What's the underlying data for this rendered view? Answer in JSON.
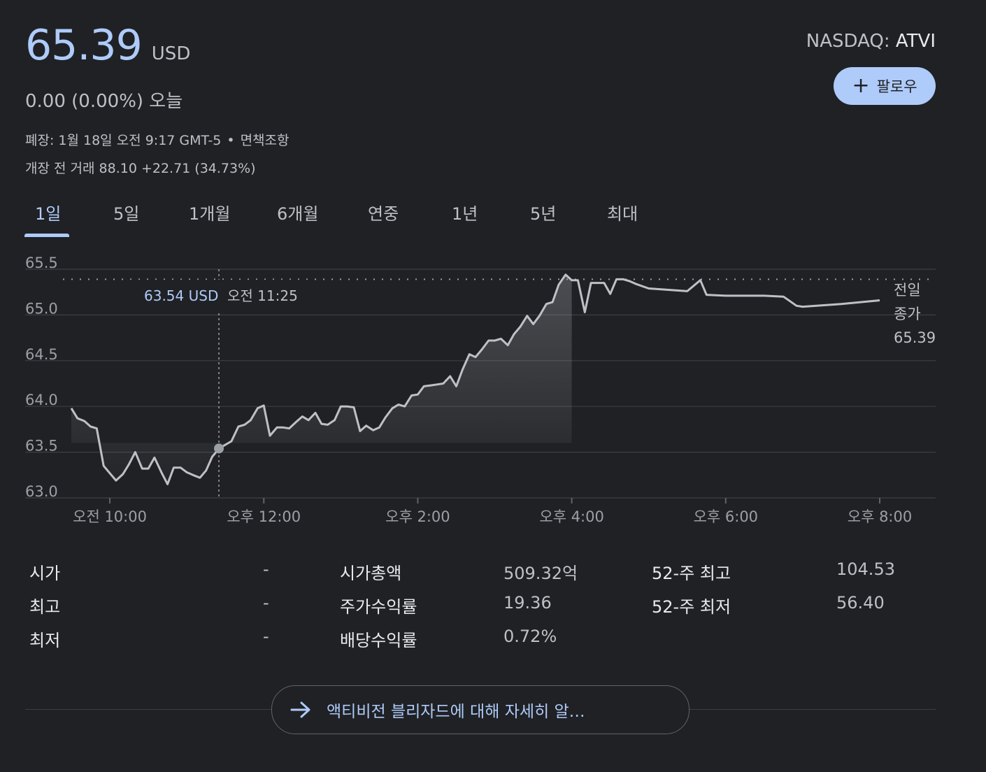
{
  "quote": {
    "price": "65.39",
    "currency": "USD",
    "change": "0.00 (0.00%) 오늘",
    "closed_info": "폐장: 1월 18일 오전 9:17 GMT-5",
    "dot": "•",
    "disclaimer": "면책조항",
    "premarket": "개장 전 거래 88.10 +22.71 (34.73%)",
    "exchange": "NASDAQ:",
    "symbol": "ATVI"
  },
  "follow_button": {
    "icon": "plus-icon",
    "label": "팔로우"
  },
  "tabs": [
    {
      "label": "1일",
      "active": true
    },
    {
      "label": "5일"
    },
    {
      "label": "1개월"
    },
    {
      "label": "6개월"
    },
    {
      "label": "연중"
    },
    {
      "label": "1년"
    },
    {
      "label": "5년"
    },
    {
      "label": "최대"
    }
  ],
  "colors": {
    "accent": "#aecbfa",
    "line": "#bdc1c6",
    "grid": "#3c4043",
    "background": "#202124"
  },
  "chart_data": {
    "type": "line",
    "title": "",
    "xlabel": "",
    "ylabel": "",
    "ylim": [
      63.0,
      65.5
    ],
    "yticks": [
      "65.5",
      "65.0",
      "64.5",
      "64.0",
      "63.5",
      "63.0"
    ],
    "xticks": [
      "오전 10:00",
      "오후 12:00",
      "오후 2:00",
      "오후 4:00",
      "오후 6:00",
      "오후 8:00"
    ],
    "xlim_hours": [
      9.5,
      20.0
    ],
    "previous_close": 65.39,
    "previous_close_label": [
      "전일",
      "종가",
      "65.39"
    ],
    "tooltip": {
      "price": "63.54 USD",
      "time": "오전 11:25",
      "x": 11.4167,
      "y": 63.54
    },
    "series": [
      {
        "points": [
          [
            9.5,
            63.98
          ],
          [
            9.58,
            63.87
          ],
          [
            9.67,
            63.84
          ],
          [
            9.75,
            63.78
          ],
          [
            9.83,
            63.76
          ],
          [
            9.92,
            63.35
          ],
          [
            10.0,
            63.27
          ],
          [
            10.08,
            63.19
          ],
          [
            10.17,
            63.26
          ],
          [
            10.25,
            63.37
          ],
          [
            10.33,
            63.5
          ],
          [
            10.42,
            63.32
          ],
          [
            10.5,
            63.32
          ],
          [
            10.58,
            63.44
          ],
          [
            10.67,
            63.28
          ],
          [
            10.75,
            63.15
          ],
          [
            10.83,
            63.33
          ],
          [
            10.92,
            63.33
          ],
          [
            11.0,
            63.28
          ],
          [
            11.08,
            63.25
          ],
          [
            11.17,
            63.22
          ],
          [
            11.25,
            63.3
          ],
          [
            11.33,
            63.45
          ],
          [
            11.42,
            63.54
          ],
          [
            11.5,
            63.58
          ],
          [
            11.58,
            63.62
          ],
          [
            11.67,
            63.78
          ],
          [
            11.75,
            63.8
          ],
          [
            11.83,
            63.85
          ],
          [
            11.92,
            63.98
          ],
          [
            12.0,
            64.01
          ],
          [
            12.08,
            63.68
          ],
          [
            12.17,
            63.77
          ],
          [
            12.25,
            63.77
          ],
          [
            12.33,
            63.76
          ],
          [
            12.42,
            63.83
          ],
          [
            12.5,
            63.89
          ],
          [
            12.58,
            63.85
          ],
          [
            12.67,
            63.93
          ],
          [
            12.75,
            63.81
          ],
          [
            12.83,
            63.8
          ],
          [
            12.92,
            63.85
          ],
          [
            13.0,
            64.0
          ],
          [
            13.08,
            64.0
          ],
          [
            13.17,
            63.99
          ],
          [
            13.25,
            63.73
          ],
          [
            13.33,
            63.79
          ],
          [
            13.42,
            63.74
          ],
          [
            13.5,
            63.77
          ],
          [
            13.58,
            63.88
          ],
          [
            13.67,
            63.98
          ],
          [
            13.75,
            64.02
          ],
          [
            13.83,
            64.0
          ],
          [
            13.92,
            64.12
          ],
          [
            14.0,
            64.13
          ],
          [
            14.08,
            64.22
          ],
          [
            14.17,
            64.23
          ],
          [
            14.25,
            64.24
          ],
          [
            14.33,
            64.25
          ],
          [
            14.42,
            64.33
          ],
          [
            14.5,
            64.22
          ],
          [
            14.58,
            64.4
          ],
          [
            14.67,
            64.57
          ],
          [
            14.75,
            64.54
          ],
          [
            14.83,
            64.62
          ],
          [
            14.92,
            64.72
          ],
          [
            15.0,
            64.72
          ],
          [
            15.08,
            64.74
          ],
          [
            15.17,
            64.67
          ],
          [
            15.25,
            64.79
          ],
          [
            15.33,
            64.87
          ],
          [
            15.42,
            64.99
          ],
          [
            15.5,
            64.9
          ],
          [
            15.58,
            64.99
          ],
          [
            15.67,
            65.12
          ],
          [
            15.75,
            65.14
          ],
          [
            15.83,
            65.33
          ],
          [
            15.92,
            65.44
          ],
          [
            16.0,
            65.38
          ],
          [
            16.08,
            65.38
          ],
          [
            16.17,
            65.03
          ],
          [
            16.25,
            65.35
          ],
          [
            16.33,
            65.35
          ],
          [
            16.42,
            65.35
          ],
          [
            16.5,
            65.23
          ],
          [
            16.58,
            65.39
          ],
          [
            16.67,
            65.39
          ],
          [
            16.75,
            65.37
          ],
          [
            16.83,
            65.34
          ],
          [
            17.0,
            65.29
          ],
          [
            17.5,
            65.26
          ],
          [
            17.67,
            65.38
          ],
          [
            17.75,
            65.22
          ],
          [
            18.0,
            65.21
          ],
          [
            18.5,
            65.21
          ],
          [
            18.75,
            65.2
          ],
          [
            18.92,
            65.1
          ],
          [
            19.0,
            65.09
          ],
          [
            19.5,
            65.12
          ],
          [
            20.0,
            65.16
          ]
        ]
      }
    ],
    "market_close_hour": 16.0,
    "grid": true
  },
  "stats": [
    {
      "label": "시가",
      "value": "-"
    },
    {
      "label": "최고",
      "value": "-"
    },
    {
      "label": "최저",
      "value": "-"
    },
    {
      "label": "시가총액",
      "value": "509.32억"
    },
    {
      "label": "주가수익률",
      "value": "19.36"
    },
    {
      "label": "배당수익률",
      "value": "0.72%"
    },
    {
      "label": "52-주 최고",
      "value": "104.53"
    },
    {
      "label": "52-주 최저",
      "value": "56.40"
    }
  ],
  "more_button": {
    "icon": "arrow-right-icon",
    "label": "액티비전 블리자드에 대해 자세히 알…"
  }
}
